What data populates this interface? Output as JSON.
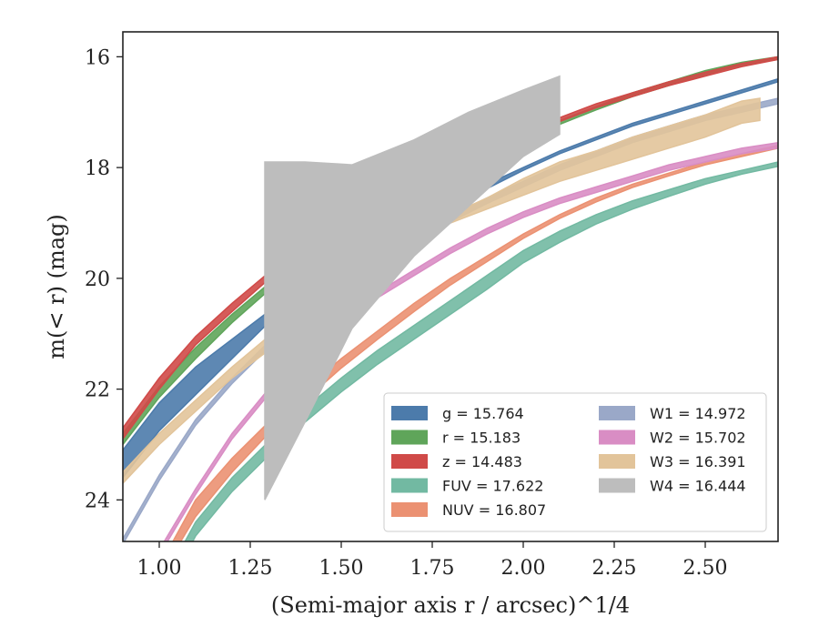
{
  "chart_data": {
    "type": "area",
    "xlabel": "(Semi-major axis r / arcsec)^1/4",
    "ylabel": "m(< r) (mag)",
    "xlim": [
      0.9,
      2.7
    ],
    "ylim": [
      24.75,
      15.55
    ],
    "y_inverted": true,
    "grid": false,
    "legend_position": "lower-right",
    "xticks": [
      "1.00",
      "1.25",
      "1.50",
      "1.75",
      "2.00",
      "2.25",
      "2.50"
    ],
    "xtick_values": [
      1.0,
      1.25,
      1.5,
      1.75,
      2.0,
      2.25,
      2.5
    ],
    "yticks": [
      "16",
      "18",
      "20",
      "22",
      "24"
    ],
    "ytick_values": [
      16,
      18,
      20,
      22,
      24
    ],
    "series": [
      {
        "name": "g = 15.764",
        "color": "#4c7bab",
        "x": [
          0.9,
          1.0,
          1.1,
          1.2,
          1.3,
          1.4,
          1.5,
          1.6,
          1.7,
          1.8,
          1.9,
          2.0,
          2.1,
          2.2,
          2.3,
          2.4,
          2.5,
          2.6,
          2.7
        ],
        "lower": [
          23.1,
          22.25,
          21.6,
          21.1,
          20.6,
          20.15,
          19.7,
          19.3,
          18.95,
          18.6,
          18.3,
          18.0,
          17.7,
          17.45,
          17.2,
          17.0,
          16.8,
          16.6,
          16.4
        ],
        "upper": [
          23.6,
          22.75,
          22.1,
          21.45,
          20.8,
          20.3,
          19.85,
          19.45,
          19.05,
          18.7,
          18.38,
          18.05,
          17.75,
          17.5,
          17.25,
          17.05,
          16.85,
          16.65,
          16.45
        ]
      },
      {
        "name": "r = 15.183",
        "color": "#5fa55a",
        "x": [
          0.9,
          1.0,
          1.1,
          1.2,
          1.3,
          1.4,
          1.5,
          1.6,
          1.7,
          1.8,
          1.9,
          2.0,
          2.1,
          2.2,
          2.3,
          2.4,
          2.5,
          2.6,
          2.7
        ],
        "lower": [
          22.8,
          21.95,
          21.25,
          20.65,
          20.1,
          19.6,
          19.15,
          18.75,
          18.4,
          18.05,
          17.75,
          17.45,
          17.15,
          16.9,
          16.65,
          16.45,
          16.25,
          16.1,
          16.0
        ],
        "upper": [
          23.0,
          22.15,
          21.45,
          20.8,
          20.22,
          19.72,
          19.25,
          18.85,
          18.48,
          18.13,
          17.82,
          17.52,
          17.22,
          16.96,
          16.72,
          16.52,
          16.32,
          16.15,
          16.05
        ]
      },
      {
        "name": "z = 14.483",
        "color": "#d04a48",
        "x": [
          0.9,
          1.0,
          1.1,
          1.2,
          1.3,
          1.4,
          1.5,
          1.6,
          1.7,
          1.8,
          1.9,
          2.0,
          2.1,
          2.2,
          2.3,
          2.4,
          2.5,
          2.6,
          2.7
        ],
        "lower": [
          22.7,
          21.8,
          21.05,
          20.45,
          19.9,
          19.4,
          18.95,
          18.55,
          18.2,
          17.9,
          17.6,
          17.35,
          17.1,
          16.85,
          16.65,
          16.45,
          16.28,
          16.12,
          16.0
        ],
        "upper": [
          22.9,
          22.0,
          21.2,
          20.6,
          20.02,
          19.52,
          19.05,
          18.65,
          18.3,
          17.98,
          17.68,
          17.42,
          17.17,
          16.92,
          16.72,
          16.52,
          16.35,
          16.18,
          16.05
        ]
      },
      {
        "name": "FUV = 17.622",
        "color": "#72b9a2",
        "x": [
          0.9,
          1.0,
          1.1,
          1.2,
          1.3,
          1.4,
          1.5,
          1.6,
          1.7,
          1.8,
          1.9,
          2.0,
          2.1,
          2.2,
          2.3,
          2.4,
          2.5,
          2.6,
          2.7
        ],
        "lower": [
          26.5,
          25.6,
          24.4,
          23.6,
          22.95,
          22.35,
          21.8,
          21.3,
          20.85,
          20.4,
          19.95,
          19.5,
          19.15,
          18.85,
          18.6,
          18.4,
          18.2,
          18.05,
          17.9
        ],
        "upper": [
          26.8,
          25.9,
          24.65,
          23.85,
          23.2,
          22.6,
          22.05,
          21.55,
          21.1,
          20.65,
          20.2,
          19.72,
          19.35,
          19.02,
          18.75,
          18.52,
          18.3,
          18.12,
          17.98
        ]
      },
      {
        "name": "NUV = 16.807",
        "color": "#eb9172",
        "x": [
          0.9,
          1.0,
          1.1,
          1.2,
          1.3,
          1.4,
          1.5,
          1.6,
          1.7,
          1.8,
          1.9,
          2.0,
          2.1,
          2.2,
          2.3,
          2.4,
          2.5,
          2.6,
          2.7
        ],
        "lower": [
          26.1,
          25.2,
          24.0,
          23.25,
          22.6,
          22.0,
          21.45,
          20.95,
          20.45,
          20.0,
          19.6,
          19.2,
          18.85,
          18.55,
          18.3,
          18.1,
          17.9,
          17.75,
          17.6
        ],
        "upper": [
          26.3,
          25.4,
          24.3,
          23.5,
          22.8,
          22.2,
          21.62,
          21.1,
          20.6,
          20.12,
          19.7,
          19.28,
          18.92,
          18.62,
          18.36,
          18.15,
          17.95,
          17.8,
          17.65
        ]
      },
      {
        "name": "W1 = 14.972",
        "color": "#9aa8c8",
        "x": [
          0.9,
          1.0,
          1.1,
          1.2,
          1.3,
          1.4,
          1.5,
          1.6,
          1.7,
          1.8,
          1.9,
          2.0,
          2.1,
          2.2,
          2.3,
          2.4,
          2.5,
          2.6,
          2.7
        ],
        "lower": [
          24.7,
          23.55,
          22.55,
          21.8,
          21.15,
          20.6,
          20.1,
          19.65,
          19.25,
          18.88,
          18.55,
          18.25,
          17.95,
          17.7,
          17.45,
          17.25,
          17.05,
          16.9,
          16.75
        ],
        "upper": [
          24.8,
          23.65,
          22.65,
          21.9,
          21.25,
          20.7,
          20.2,
          19.75,
          19.35,
          18.98,
          18.65,
          18.35,
          18.05,
          17.8,
          17.55,
          17.35,
          17.15,
          17.0,
          16.85
        ]
      },
      {
        "name": "W2 = 15.702",
        "color": "#d98dc4",
        "x": [
          0.9,
          1.0,
          1.1,
          1.2,
          1.3,
          1.4,
          1.5,
          1.6,
          1.7,
          1.8,
          1.9,
          2.0,
          2.1,
          2.2,
          2.3,
          2.4,
          2.5,
          2.6,
          2.7
        ],
        "lower": [
          26.0,
          24.9,
          23.8,
          22.8,
          22.0,
          21.3,
          20.75,
          20.25,
          19.85,
          19.45,
          19.1,
          18.8,
          18.55,
          18.35,
          18.15,
          17.95,
          17.8,
          17.65,
          17.55
        ],
        "upper": [
          26.1,
          25.0,
          23.9,
          22.9,
          22.1,
          21.4,
          20.85,
          20.35,
          19.95,
          19.55,
          19.2,
          18.9,
          18.65,
          18.45,
          18.25,
          18.05,
          17.9,
          17.75,
          17.65
        ]
      },
      {
        "name": "W3 = 16.391",
        "color": "#e2c49a",
        "x": [
          0.9,
          1.0,
          1.1,
          1.2,
          1.3,
          1.4,
          1.5,
          1.6,
          1.7,
          1.8,
          1.9,
          2.0,
          2.1,
          2.2,
          2.3,
          2.4,
          2.5,
          2.6,
          2.65
        ],
        "lower": [
          23.5,
          22.8,
          22.2,
          21.6,
          21.05,
          20.6,
          20.1,
          19.6,
          19.2,
          18.85,
          18.55,
          18.2,
          17.9,
          17.7,
          17.45,
          17.25,
          17.05,
          16.8,
          16.75
        ],
        "upper": [
          23.7,
          23.0,
          22.4,
          21.8,
          21.3,
          21.0,
          20.55,
          20.0,
          19.4,
          19.0,
          18.75,
          18.5,
          18.25,
          18.05,
          17.85,
          17.65,
          17.45,
          17.2,
          17.15
        ]
      },
      {
        "name": "W4 = 16.444",
        "color": "#bdbdbd",
        "x": [
          1.29,
          1.4,
          1.53,
          1.7,
          1.85,
          2.0,
          2.1
        ],
        "lower": [
          17.9,
          17.9,
          17.95,
          17.5,
          17.0,
          16.6,
          16.35
        ],
        "upper": [
          24.0,
          22.6,
          20.9,
          19.6,
          18.7,
          17.8,
          17.4
        ]
      }
    ]
  }
}
